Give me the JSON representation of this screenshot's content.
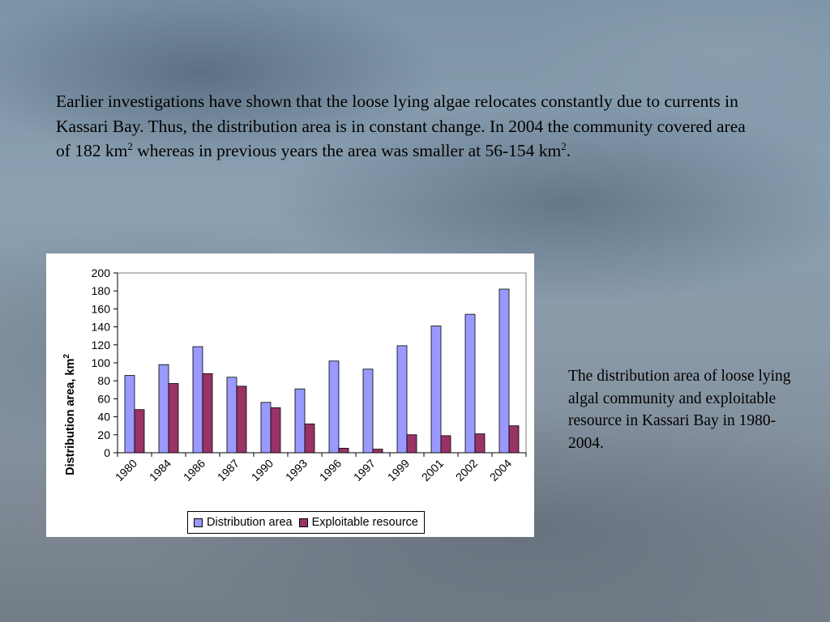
{
  "intro": {
    "part1": "Earlier investigations have shown that the loose lying algae relocates constantly due to currents in Kassari Bay. Thus, the distribution area is in constant change. In 2004 the community covered area of 182 km",
    "sup1": "2",
    "part2": " whereas in previous years the area was smaller at 56-154 km",
    "sup2": "2",
    "part3": "."
  },
  "caption": "The distribution area of loose lying algal community and exploitable resource in Kassari Bay in 1980-2004.",
  "colors": {
    "distribution": "#9999ff",
    "exploitable": "#993366"
  },
  "chart_data": {
    "type": "bar",
    "title": "",
    "xlabel": "",
    "ylabel": "Distribution area, km",
    "ylabel_sup": "2",
    "ylim": [
      0,
      200
    ],
    "yticks": [
      0,
      20,
      40,
      60,
      80,
      100,
      120,
      140,
      160,
      180,
      200
    ],
    "categories": [
      "1980",
      "1984",
      "1986",
      "1987",
      "1990",
      "1993",
      "1996",
      "1997",
      "1999",
      "2001",
      "2002",
      "2004"
    ],
    "series": [
      {
        "name": "Distribution area",
        "values": [
          86,
          98,
          118,
          84,
          56,
          71,
          102,
          93,
          119,
          141,
          154,
          182
        ]
      },
      {
        "name": "Exploitable resource",
        "values": [
          48,
          77,
          88,
          74,
          50,
          32,
          5,
          4,
          20,
          19,
          21,
          30
        ]
      }
    ],
    "grid": false,
    "legend_position": "bottom"
  }
}
